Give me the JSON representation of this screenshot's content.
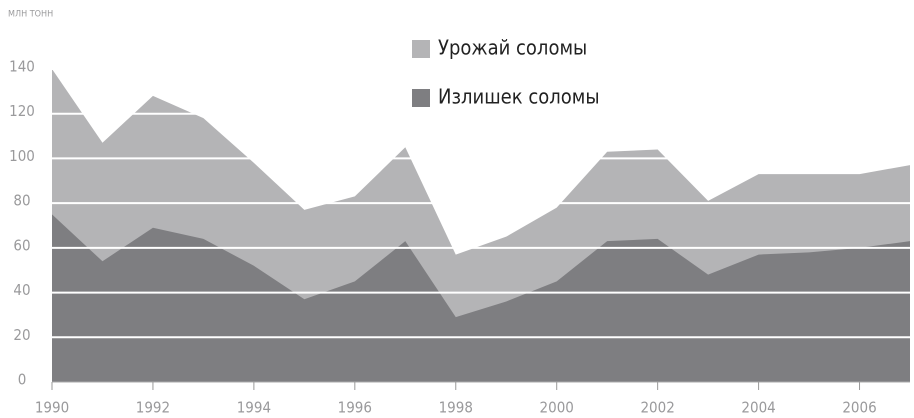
{
  "chart_data": {
    "type": "area",
    "y_unit_label": "млн тонн",
    "x": [
      1990,
      1991,
      1992,
      1993,
      1994,
      1995,
      1996,
      1997,
      1998,
      1999,
      2000,
      2001,
      2002,
      2003,
      2004,
      2005,
      2006,
      2007
    ],
    "series": [
      {
        "name": "Урожай соломы",
        "color": "#b4b4b6",
        "values": [
          140,
          107,
          128,
          118,
          98,
          77,
          83,
          105,
          57,
          65,
          78,
          103,
          104,
          81,
          93,
          93,
          93,
          97
        ]
      },
      {
        "name": "Излишек соломы",
        "color": "#7e7e81",
        "values": [
          75,
          54,
          69,
          64,
          52,
          37,
          45,
          63,
          29,
          36,
          45,
          63,
          64,
          48,
          57,
          58,
          60,
          63
        ]
      }
    ],
    "xlim": [
      1990,
      2007
    ],
    "xticks": [
      1990,
      1992,
      1994,
      1996,
      1998,
      2000,
      2002,
      2004,
      2006
    ],
    "ylim": [
      0,
      140
    ],
    "yticks": [
      0,
      20,
      40,
      60,
      80,
      100,
      120,
      140
    ],
    "grid": true
  }
}
